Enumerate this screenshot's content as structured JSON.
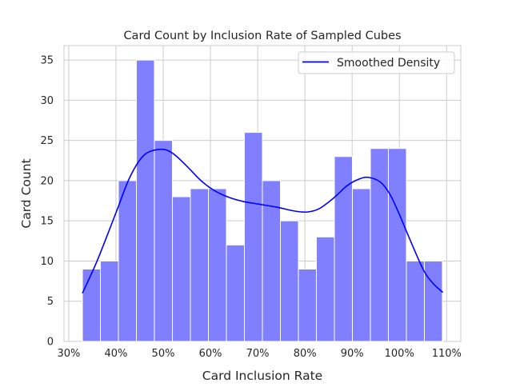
{
  "chart_data": {
    "type": "bar",
    "title": "Card Count by Inclusion Rate of Sampled Cubes",
    "xlabel": "Card Inclusion Rate",
    "ylabel": "Card Count",
    "xlim": [
      29,
      113
    ],
    "ylim": [
      0,
      36.8
    ],
    "xticks": [
      30,
      40,
      50,
      60,
      70,
      80,
      90,
      100,
      110
    ],
    "xtick_labels": [
      "30%",
      "40%",
      "50%",
      "60%",
      "70%",
      "80%",
      "90%",
      "100%",
      "110%"
    ],
    "yticks": [
      0,
      5,
      10,
      15,
      20,
      25,
      30,
      35
    ],
    "ytick_labels": [
      "0",
      "5",
      "10",
      "15",
      "20",
      "25",
      "30",
      "35"
    ],
    "grid": true,
    "bin_start": 32.9,
    "bin_width": 3.81,
    "values": [
      9,
      10,
      20,
      35,
      25,
      18,
      19,
      19,
      12,
      26,
      20,
      15,
      9,
      13,
      23,
      19,
      24,
      24,
      10,
      10
    ],
    "bar_color": "#8080ff",
    "density": {
      "name": "Smoothed Density",
      "color": "#0000ff",
      "x": [
        32.9,
        36,
        40,
        43,
        46,
        49.5,
        52,
        55,
        58,
        61,
        64,
        67,
        70,
        74,
        78,
        80.5,
        83,
        86,
        89,
        91.5,
        93.5,
        96,
        98,
        100,
        102,
        105,
        107,
        109.2
      ],
      "y": [
        6,
        10,
        16,
        20.5,
        23.2,
        23.9,
        23.4,
        21.8,
        20,
        18.7,
        17.9,
        17.4,
        17.1,
        16.7,
        16.2,
        16.1,
        16.5,
        17.8,
        19.4,
        20.2,
        20.4,
        19.8,
        18.3,
        15.8,
        13,
        9,
        7.3,
        6.1
      ]
    },
    "legend": {
      "placement": "top-right",
      "entries": [
        "Smoothed Density"
      ]
    }
  }
}
